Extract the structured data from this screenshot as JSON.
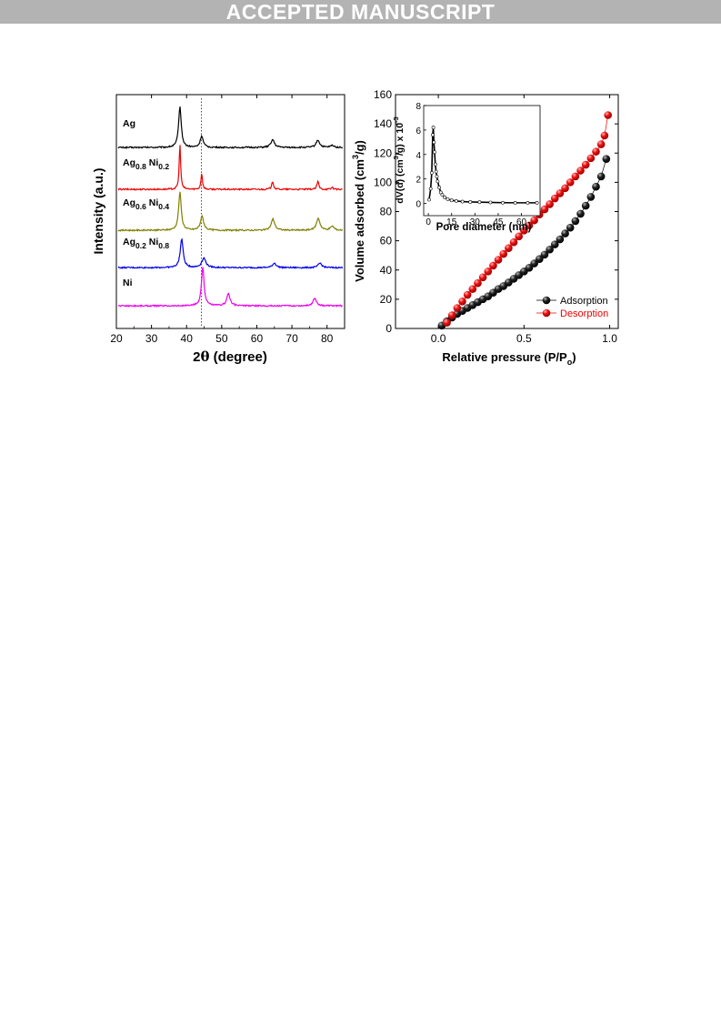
{
  "banner": {
    "text": "ACCEPTED MANUSCRIPT"
  },
  "chart_data": [
    {
      "type": "line",
      "panel": "xrd",
      "xlabel_parts": [
        "2",
        "θ",
        " (degree)"
      ],
      "ylabel": "Intensity (a.u.)",
      "xlim": [
        20,
        85
      ],
      "x_ticks": [
        20,
        30,
        40,
        50,
        60,
        70,
        80
      ],
      "y_ticks": "none",
      "grid": false,
      "reference_line_x": 44.2,
      "series": [
        {
          "label_parts": [
            [
              "Ag",
              false
            ]
          ],
          "color": "#000000",
          "offset": 4,
          "peaks": [
            [
              38.1,
              1.0,
              0.45
            ],
            [
              44.3,
              0.28,
              0.5
            ],
            [
              64.5,
              0.19,
              0.6
            ],
            [
              77.4,
              0.18,
              0.6
            ],
            [
              81.5,
              0.05,
              0.6
            ]
          ]
        },
        {
          "label_parts": [
            [
              "Ag",
              false
            ],
            [
              "0.8",
              true
            ],
            [
              " Ni",
              false
            ],
            [
              "0.2",
              true
            ]
          ],
          "color": "#ee0000",
          "offset": 3,
          "peaks": [
            [
              38.1,
              1.1,
              0.25
            ],
            [
              44.3,
              0.4,
              0.25
            ],
            [
              64.5,
              0.2,
              0.3
            ],
            [
              77.4,
              0.2,
              0.3
            ],
            [
              81.5,
              0.05,
              0.3
            ]
          ]
        },
        {
          "label_parts": [
            [
              "Ag",
              false
            ],
            [
              "0.6",
              true
            ],
            [
              " Ni",
              false
            ],
            [
              "0.4",
              true
            ]
          ],
          "color": "#808000",
          "offset": 2,
          "peaks": [
            [
              38.1,
              0.95,
              0.45
            ],
            [
              44.4,
              0.35,
              0.55
            ],
            [
              64.6,
              0.28,
              0.6
            ],
            [
              77.5,
              0.3,
              0.6
            ],
            [
              81.5,
              0.1,
              0.6
            ]
          ]
        },
        {
          "label_parts": [
            [
              "Ag",
              false
            ],
            [
              "0.2",
              true
            ],
            [
              " Ni",
              false
            ],
            [
              "0.8",
              true
            ]
          ],
          "color": "#0000ee",
          "offset": 1,
          "peaks": [
            [
              38.6,
              0.75,
              0.5
            ],
            [
              44.9,
              0.25,
              0.7
            ],
            [
              65.0,
              0.12,
              0.6
            ],
            [
              78.0,
              0.12,
              0.6
            ]
          ]
        },
        {
          "label_parts": [
            [
              "Ni",
              false
            ]
          ],
          "color": "#ee00ee",
          "offset": 0,
          "peaks": [
            [
              44.6,
              0.95,
              0.45
            ],
            [
              51.9,
              0.3,
              0.55
            ],
            [
              76.5,
              0.18,
              0.6
            ]
          ]
        }
      ]
    },
    {
      "type": "scatter",
      "panel": "bet",
      "xlabel": "Relative pressure (P/P",
      "xlabel_sub": "o",
      "xlabel_end": ")",
      "ylabel": "Volume adsorbed (cm",
      "ylabel_sup": "3",
      "ylabel_end": "/g)",
      "xlim": [
        -0.25,
        1.05
      ],
      "ylim": [
        0,
        160
      ],
      "x_ticks": [
        0.0,
        0.5,
        1.0
      ],
      "x_tick_labels": [
        "0.0",
        "0.5",
        "1.0"
      ],
      "y_ticks": [
        0,
        20,
        40,
        60,
        80,
        100,
        120,
        140,
        160
      ],
      "legend_position": "bottom-right",
      "series": [
        {
          "name": "Adsorption",
          "color": "#000000",
          "x": [
            0.02,
            0.05,
            0.08,
            0.11,
            0.14,
            0.17,
            0.2,
            0.23,
            0.26,
            0.29,
            0.32,
            0.35,
            0.38,
            0.41,
            0.44,
            0.47,
            0.5,
            0.53,
            0.56,
            0.59,
            0.62,
            0.65,
            0.68,
            0.71,
            0.74,
            0.77,
            0.8,
            0.83,
            0.86,
            0.89,
            0.92,
            0.95,
            0.98
          ],
          "y": [
            2,
            5,
            7.5,
            10,
            12,
            14,
            16,
            18,
            20,
            22,
            24.5,
            27,
            29,
            31.5,
            34,
            36.5,
            39,
            41.5,
            44.5,
            47.5,
            50.5,
            54,
            57.5,
            61,
            65,
            69,
            73.5,
            78.5,
            84,
            90,
            97,
            104,
            116
          ]
        },
        {
          "name": "Desorption",
          "color": "#ee0000",
          "x": [
            0.05,
            0.08,
            0.11,
            0.14,
            0.17,
            0.2,
            0.23,
            0.26,
            0.29,
            0.32,
            0.35,
            0.38,
            0.41,
            0.44,
            0.47,
            0.5,
            0.53,
            0.56,
            0.59,
            0.62,
            0.65,
            0.68,
            0.71,
            0.74,
            0.77,
            0.8,
            0.83,
            0.86,
            0.89,
            0.92,
            0.95,
            0.97,
            0.99
          ],
          "y": [
            4,
            9,
            14,
            18.5,
            23,
            27,
            31,
            35,
            39,
            43,
            47,
            51,
            55,
            59,
            63,
            67,
            70.5,
            74,
            78,
            81.5,
            85,
            89,
            92.5,
            96,
            100,
            104,
            108,
            112,
            116.5,
            121,
            126,
            132,
            146
          ]
        }
      ],
      "inset": {
        "type": "line",
        "xlabel": "Pore diameter (nm)",
        "ylabel": "dV(d) (cm",
        "ylabel_sup": "3",
        "ylabel_end": "/g) x 10",
        "ylabel_sup2": "-3",
        "xlim": [
          -3,
          72
        ],
        "ylim": [
          -1,
          8
        ],
        "x_ticks": [
          0,
          15,
          30,
          45,
          60
        ],
        "y_ticks": [
          0,
          2,
          4,
          6,
          8
        ],
        "x": [
          0.5,
          1.5,
          2.2,
          2.8,
          3.2,
          3.6,
          4.0,
          4.5,
          5.0,
          5.5,
          6.0,
          7.0,
          8.0,
          9.0,
          10.5,
          12.5,
          15.0,
          18.0,
          22.0,
          27.0,
          33.0,
          40.0,
          48.0,
          56.0,
          64.0,
          70.0
        ],
        "y": [
          0.3,
          1.2,
          2.5,
          5.6,
          6.2,
          5.0,
          4.2,
          3.2,
          2.6,
          2.2,
          1.8,
          1.3,
          0.9,
          0.7,
          0.5,
          0.35,
          0.25,
          0.2,
          0.15,
          0.12,
          0.1,
          0.08,
          0.06,
          0.05,
          0.05,
          0.05
        ]
      }
    }
  ]
}
